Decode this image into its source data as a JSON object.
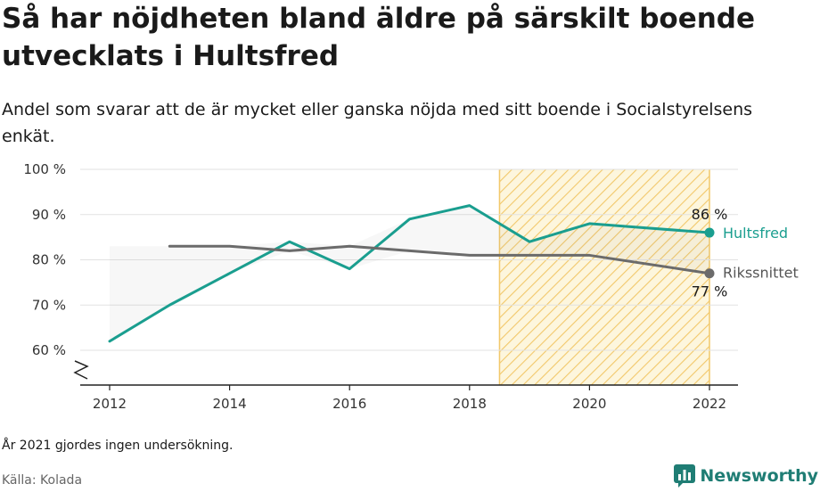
{
  "title": "Så har nöjdheten bland äldre på särskilt boende utvecklats i Hultsfred",
  "subtitle": "Andel som svarar att de är mycket eller ganska nöjda med sitt boende i Socialstyrelsens enkät.",
  "note": "År 2021 gjordes ingen undersökning.",
  "source": "Källa: Kolada",
  "brand": "Newsworthy",
  "chart_data": {
    "type": "line",
    "ylim": [
      52.5,
      100
    ],
    "yticks": [
      60,
      70,
      80,
      90,
      100
    ],
    "ytick_labels": [
      "60 %",
      "70 %",
      "80 %",
      "90 %",
      "100 %"
    ],
    "xlim": [
      2011.55,
      2022.5
    ],
    "xticks": [
      2012,
      2014,
      2016,
      2018,
      2020,
      2022
    ],
    "xtick_labels": [
      "2012",
      "2014",
      "2016",
      "2018",
      "2020",
      "2022"
    ],
    "axis_break": true,
    "grid": true,
    "highlight": {
      "from": 2018.5,
      "to": 2022,
      "color": "#f5c543",
      "pattern": "diagonal-hatch"
    },
    "series": [
      {
        "name": "Hultsfred",
        "color": "#1a9e8f",
        "x": [
          2012,
          2013,
          2014,
          2015,
          2016,
          2017,
          2018,
          2019,
          2020,
          2022
        ],
        "values": [
          62,
          70,
          77,
          84,
          78,
          89,
          92,
          84,
          88,
          86
        ],
        "end_label": "86 %"
      },
      {
        "name": "Rikssnittet",
        "color": "#6b6b6b",
        "x": [
          2013,
          2014,
          2015,
          2016,
          2017,
          2018,
          2019,
          2020,
          2022
        ],
        "values": [
          83,
          83,
          82,
          83,
          82,
          81,
          81,
          81,
          77
        ],
        "end_label": "77 %"
      }
    ]
  }
}
